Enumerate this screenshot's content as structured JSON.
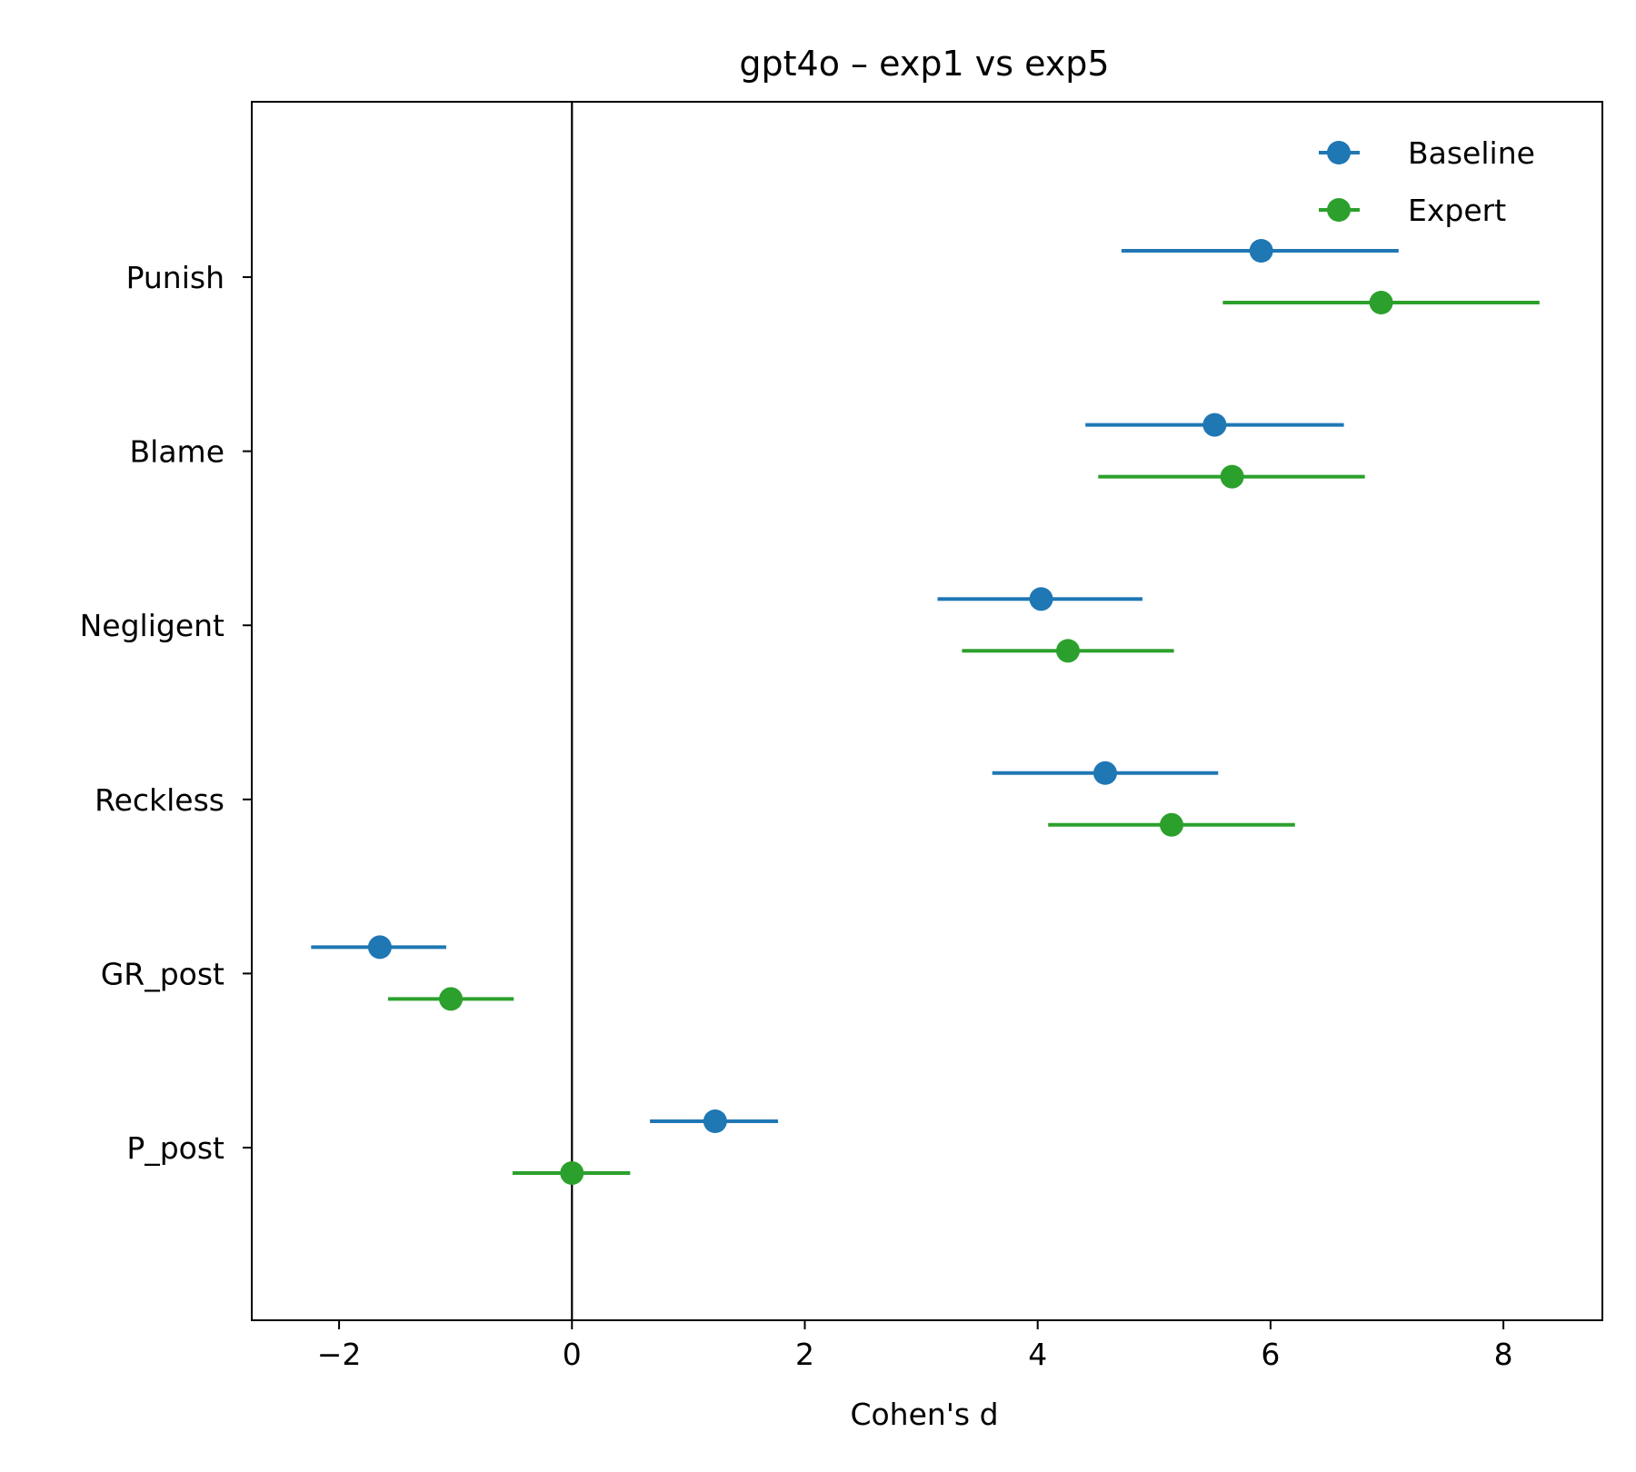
{
  "chart_data": {
    "type": "scatter",
    "title": "gpt4o  –  exp1 vs exp5",
    "xlabel": "Cohen's d",
    "ylabel": "",
    "xlim": [
      -2.75,
      8.85
    ],
    "xticks": [
      -2,
      0,
      2,
      4,
      6,
      8
    ],
    "xtick_labels": [
      "−2",
      "0",
      "2",
      "4",
      "6",
      "8"
    ],
    "categories": [
      "Punish",
      "Blame",
      "Negligent",
      "Reckless",
      "GR_post",
      "P_post"
    ],
    "reference_line_x": 0,
    "grid": false,
    "legend_position": "top-right",
    "series": [
      {
        "name": "Baseline",
        "color": "#1f77b4",
        "values": [
          5.92,
          5.52,
          4.03,
          4.58,
          -1.65,
          1.23
        ],
        "ci_low": [
          4.72,
          4.41,
          3.14,
          3.61,
          -2.24,
          0.67
        ],
        "ci_high": [
          7.1,
          6.63,
          4.9,
          5.55,
          -1.08,
          1.77
        ]
      },
      {
        "name": "Expert",
        "color": "#2ca02c",
        "values": [
          6.95,
          5.67,
          4.26,
          5.15,
          -1.04,
          0.0
        ],
        "ci_low": [
          5.59,
          4.52,
          3.35,
          4.09,
          -1.58,
          -0.51
        ],
        "ci_high": [
          8.31,
          6.81,
          5.17,
          6.21,
          -0.5,
          0.5
        ]
      }
    ]
  }
}
